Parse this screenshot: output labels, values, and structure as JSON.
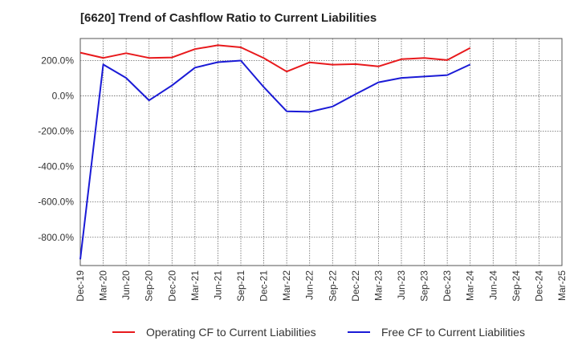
{
  "chart_data": {
    "type": "line",
    "title": "[6620]  Trend of Cashflow Ratio to Current Liabilities",
    "xlabel": "",
    "ylabel": "",
    "x": [
      "Dec-19",
      "Mar-20",
      "Jun-20",
      "Sep-20",
      "Dec-20",
      "Mar-21",
      "Jun-21",
      "Sep-21",
      "Dec-21",
      "Mar-22",
      "Jun-22",
      "Sep-22",
      "Dec-22",
      "Mar-23",
      "Jun-23",
      "Sep-23",
      "Dec-23",
      "Mar-24",
      "Jun-24",
      "Sep-24",
      "Dec-24",
      "Mar-25"
    ],
    "series": [
      {
        "name": "Operating CF to Current Liabilities",
        "color": "#e8191c",
        "values": [
          245,
          215,
          242,
          215,
          218,
          265,
          287,
          275,
          214,
          138,
          190,
          177,
          180,
          167,
          208,
          215,
          203,
          272,
          null,
          null,
          null,
          null
        ]
      },
      {
        "name": "Free CF to Current Liabilities",
        "color": "#1a1ad6",
        "values": [
          -925,
          178,
          102,
          -25,
          60,
          160,
          191,
          200,
          50,
          -87,
          -90,
          -60,
          10,
          77,
          102,
          110,
          118,
          178,
          null,
          null,
          null,
          null
        ]
      }
    ],
    "yticks": [
      200,
      0,
      -200,
      -400,
      -600,
      -800
    ],
    "ytick_labels": [
      "200.0%",
      "0.0%",
      "-200.0%",
      "-400.0%",
      "-600.0%",
      "-800.0%"
    ],
    "ylim": [
      -960,
      325
    ],
    "grid": true,
    "legend_position": "bottom"
  }
}
